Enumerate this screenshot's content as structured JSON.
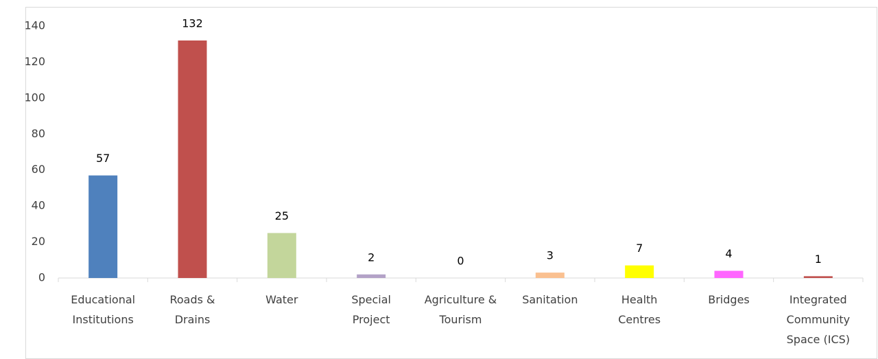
{
  "chart_data": {
    "type": "bar",
    "categories": [
      "Educational Institutions",
      "Roads & Drains",
      "Water",
      "Special Project",
      "Agriculture & Tourism",
      "Sanitation",
      "Health Centres",
      "Bridges",
      "Integrated Community Space (ICS)"
    ],
    "values": [
      57,
      132,
      25,
      2,
      0,
      3,
      7,
      4,
      1
    ],
    "colors": [
      "#4f81bd",
      "#c0504d",
      "#c3d69b",
      "#b3a2c7",
      "#92cddc",
      "#fac090",
      "#ffff00",
      "#ff66ff",
      "#c0504d"
    ],
    "ylim": [
      0,
      140
    ],
    "yticks": [
      0,
      20,
      40,
      60,
      80,
      100,
      120,
      140
    ],
    "grid": false
  }
}
